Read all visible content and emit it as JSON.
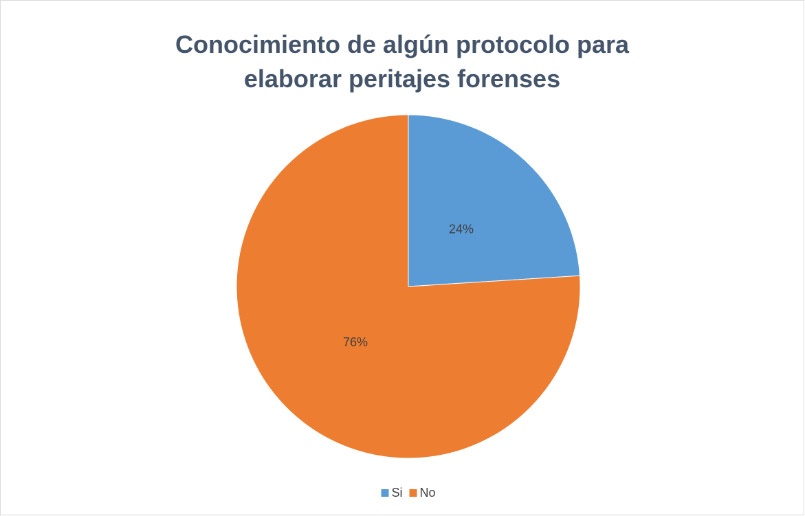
{
  "chart_data": {
    "type": "pie",
    "title": "Conocimiento de algún protocolo para elaborar peritajes forenses",
    "categories": [
      "Si",
      "No"
    ],
    "values": [
      24,
      76
    ],
    "value_labels": [
      "24%",
      "76%"
    ],
    "colors": [
      "#5b9bd5",
      "#ed7d31"
    ],
    "legend": "bottom"
  }
}
